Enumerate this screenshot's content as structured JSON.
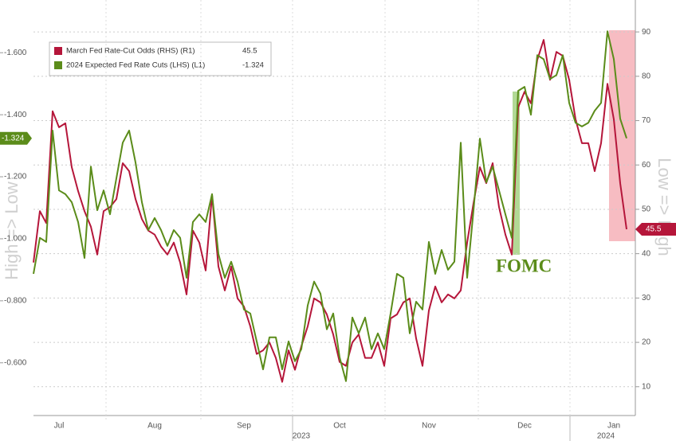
{
  "chart_data": {
    "type": "line",
    "y_label": "High => Low",
    "y2_label": "Low => High",
    "annotation": "FOMC",
    "x_group_labels": [
      "2023",
      "2024"
    ],
    "categories": [
      null,
      null,
      null,
      null,
      "Jul",
      null,
      null,
      null,
      null,
      null,
      null,
      null,
      null,
      null,
      null,
      null,
      null,
      null,
      null,
      "Aug",
      null,
      null,
      null,
      null,
      null,
      null,
      null,
      null,
      null,
      null,
      null,
      null,
      null,
      "Sep",
      null,
      null,
      null,
      null,
      null,
      null,
      null,
      null,
      null,
      null,
      null,
      null,
      null,
      null,
      "Oct",
      null,
      null,
      null,
      null,
      null,
      null,
      null,
      null,
      null,
      null,
      null,
      null,
      null,
      "Nov",
      null,
      null,
      null,
      null,
      null,
      null,
      null,
      null,
      null,
      null,
      null,
      null,
      null,
      null,
      "Dec",
      null,
      null,
      null,
      null,
      null,
      null,
      null,
      null,
      null,
      null,
      null,
      null,
      null,
      "Jan",
      null,
      null
    ],
    "series": [
      {
        "name": "March Fed Rate-Cut Odds (RHS) (R1)",
        "color": "#b5163a",
        "axis": "y2",
        "values": [
          38.0,
          49.6,
          46.9,
          72.1,
          68.5,
          69.4,
          59.5,
          54.1,
          49.6,
          46.1,
          39.8,
          49.6,
          50.5,
          52.3,
          60.4,
          58.6,
          52.3,
          47.8,
          45.2,
          44.3,
          41.6,
          39.8,
          42.5,
          38.0,
          30.8,
          45.2,
          42.5,
          36.2,
          53.2,
          37.1,
          31.7,
          37.1,
          29.9,
          28.1,
          23.6,
          17.4,
          18.2,
          20.0,
          16.5,
          11.1,
          18.2,
          13.8,
          19.1,
          23.6,
          29.9,
          29.0,
          26.3,
          21.8,
          15.6,
          14.7,
          20.0,
          21.8,
          16.5,
          16.5,
          20.0,
          14.7,
          25.4,
          26.3,
          29.0,
          29.9,
          20.9,
          14.7,
          27.2,
          32.6,
          29.0,
          30.8,
          29.9,
          31.7,
          42.5,
          51.4,
          59.5,
          55.9,
          60.4,
          50.5,
          44.3,
          39.8,
          73.0,
          76.5,
          73.9,
          83.7,
          88.2,
          79.2,
          85.5,
          84.6,
          79.2,
          70.3,
          64.9,
          64.9,
          58.6,
          64.9,
          78.3,
          70.3,
          55.9,
          45.5
        ]
      },
      {
        "name": "2024 Expected Fed Rate Cuts (LHS) (L1)",
        "color": "#5b8c1a",
        "axis": "y",
        "values": [
          -0.887,
          -1.003,
          -0.99,
          -1.349,
          -1.156,
          -1.144,
          -1.118,
          -1.054,
          -0.938,
          -1.233,
          -1.092,
          -1.156,
          -1.079,
          -1.195,
          -1.31,
          -1.349,
          -1.246,
          -1.118,
          -1.028,
          -1.067,
          -1.028,
          -0.977,
          -1.028,
          -1.003,
          -0.874,
          -1.054,
          -1.079,
          -1.054,
          -1.144,
          -0.951,
          -0.874,
          -0.926,
          -0.862,
          -0.772,
          -0.759,
          -0.669,
          -0.579,
          -0.682,
          -0.682,
          -0.579,
          -0.669,
          -0.605,
          -0.644,
          -0.785,
          -0.862,
          -0.823,
          -0.708,
          -0.759,
          -0.618,
          -0.541,
          -0.746,
          -0.695,
          -0.746,
          -0.644,
          -0.695,
          -0.644,
          -0.759,
          -0.887,
          -0.874,
          -0.695,
          -0.797,
          -0.772,
          -0.99,
          -0.887,
          -0.964,
          -0.9,
          -0.926,
          -1.31,
          -0.874,
          -1.092,
          -1.323,
          -1.182,
          -1.233,
          -1.156,
          -1.079,
          -1.003,
          -1.477,
          -1.49,
          -1.4,
          -1.592,
          -1.579,
          -1.515,
          -1.528,
          -1.592,
          -1.438,
          -1.374,
          -1.362,
          -1.374,
          -1.413,
          -1.438,
          -1.669,
          -1.579,
          -1.387,
          -1.324
        ]
      }
    ],
    "ylim": [
      -0.43,
      -1.77
    ],
    "yticks": [
      {
        "value": -0.6,
        "label": "-0.600"
      },
      {
        "value": -0.8,
        "label": "-0.800"
      },
      {
        "value": -1.0,
        "label": "-1.000"
      },
      {
        "value": -1.2,
        "label": "-1.200"
      },
      {
        "value": -1.4,
        "label": "-1.400"
      },
      {
        "value": -1.6,
        "label": "-1.600"
      }
    ],
    "y2lim": [
      3.5,
      97.2
    ],
    "y2ticks": [
      10,
      20,
      30,
      40,
      50,
      60,
      70,
      80,
      90
    ],
    "grid": true
  }
}
